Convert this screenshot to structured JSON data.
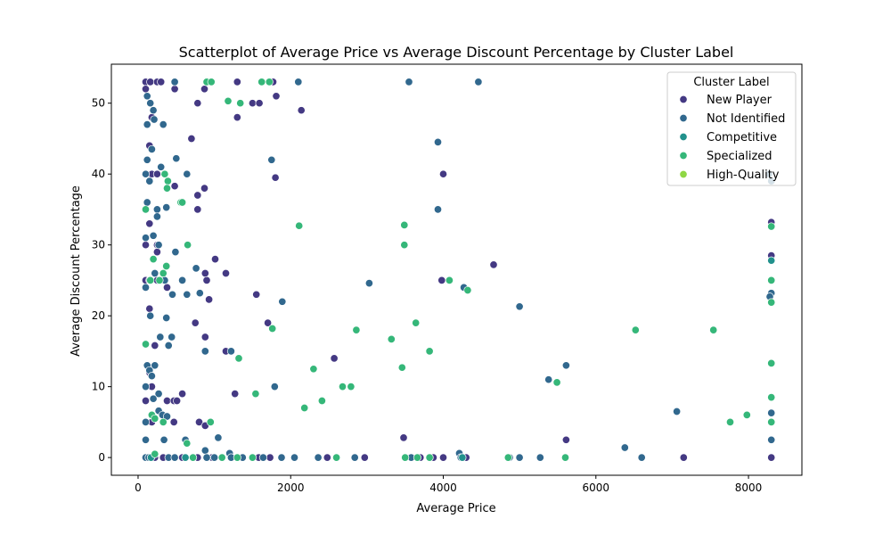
{
  "chart_data": {
    "type": "scatter",
    "title": "Scatterplot of Average Price vs Average Discount Percentage by Cluster Label",
    "xlabel": "Average Price",
    "ylabel": "Average Discount Percentage",
    "xlim": [
      -350,
      8700
    ],
    "ylim": [
      -2.5,
      55.5
    ],
    "xticks": [
      0,
      2000,
      4000,
      6000,
      8000
    ],
    "yticks": [
      0,
      10,
      20,
      30,
      40,
      50
    ],
    "grid": false,
    "legend": {
      "title": "Cluster Label",
      "placement": "top-right",
      "entries": [
        "New Player",
        "Not Identified",
        "Competitive",
        "Specialized",
        "High-Quality"
      ]
    },
    "series": [
      {
        "name": "New Player",
        "color": "#443983",
        "points": [
          [
            100,
            53
          ],
          [
            160,
            53
          ],
          [
            250,
            53
          ],
          [
            300,
            53
          ],
          [
            480,
            52
          ],
          [
            870,
            52
          ],
          [
            1300,
            53
          ],
          [
            1770,
            53
          ],
          [
            100,
            52
          ],
          [
            780,
            50
          ],
          [
            1500,
            50
          ],
          [
            1590,
            50
          ],
          [
            1810,
            51
          ],
          [
            2140,
            49
          ],
          [
            1300,
            48
          ],
          [
            180,
            48
          ],
          [
            700,
            45
          ],
          [
            150,
            44
          ],
          [
            4000,
            40
          ],
          [
            180,
            40
          ],
          [
            250,
            40
          ],
          [
            1800,
            39.5
          ],
          [
            480,
            38.3
          ],
          [
            870,
            38
          ],
          [
            780,
            37
          ],
          [
            780,
            35
          ],
          [
            150,
            33
          ],
          [
            250,
            30
          ],
          [
            100,
            30
          ],
          [
            250,
            29
          ],
          [
            1010,
            28
          ],
          [
            4660,
            27.2
          ],
          [
            100,
            25
          ],
          [
            250,
            25
          ],
          [
            900,
            25
          ],
          [
            1150,
            26
          ],
          [
            880,
            26
          ],
          [
            3980,
            25
          ],
          [
            380,
            24
          ],
          [
            1550,
            23
          ],
          [
            150,
            21
          ],
          [
            930,
            22.3
          ],
          [
            1700,
            19
          ],
          [
            750,
            19
          ],
          [
            880,
            17
          ],
          [
            2570,
            14
          ],
          [
            1150,
            15
          ],
          [
            220,
            15.8
          ],
          [
            150,
            12
          ],
          [
            180,
            10
          ],
          [
            1270,
            9
          ],
          [
            580,
            9
          ],
          [
            100,
            8
          ],
          [
            380,
            8
          ],
          [
            470,
            8
          ],
          [
            510,
            8
          ],
          [
            800,
            5
          ],
          [
            180,
            5
          ],
          [
            470,
            5
          ],
          [
            880,
            4.5
          ],
          [
            3480,
            2.8
          ],
          [
            5610,
            2.5
          ],
          [
            220,
            0
          ],
          [
            330,
            0
          ],
          [
            580,
            0
          ],
          [
            780,
            0
          ],
          [
            970,
            0
          ],
          [
            1580,
            0
          ],
          [
            1730,
            0
          ],
          [
            2480,
            0
          ],
          [
            2970,
            0
          ],
          [
            3700,
            0
          ],
          [
            3870,
            0
          ],
          [
            4000,
            0
          ],
          [
            4300,
            0
          ],
          [
            7150,
            0
          ],
          [
            8300,
            33.2
          ],
          [
            8300,
            28.5
          ],
          [
            8300,
            0
          ]
        ]
      },
      {
        "name": "Not Identified",
        "color": "#31688e",
        "points": [
          [
            480,
            53
          ],
          [
            2100,
            53
          ],
          [
            3550,
            53
          ],
          [
            4460,
            53
          ],
          [
            120,
            51
          ],
          [
            160,
            50
          ],
          [
            200,
            49
          ],
          [
            210,
            47.7
          ],
          [
            120,
            47
          ],
          [
            330,
            47
          ],
          [
            3930,
            44.5
          ],
          [
            180,
            43.5
          ],
          [
            120,
            42
          ],
          [
            500,
            42.2
          ],
          [
            1750,
            42
          ],
          [
            300,
            41
          ],
          [
            100,
            40
          ],
          [
            640,
            40
          ],
          [
            150,
            39
          ],
          [
            120,
            36
          ],
          [
            250,
            35
          ],
          [
            370,
            35.3
          ],
          [
            3930,
            35
          ],
          [
            250,
            34
          ],
          [
            200,
            31.3
          ],
          [
            100,
            31
          ],
          [
            8300,
            39
          ],
          [
            8270,
            40
          ],
          [
            270,
            30
          ],
          [
            150,
            25
          ],
          [
            220,
            26
          ],
          [
            350,
            25
          ],
          [
            100,
            24
          ],
          [
            450,
            23
          ],
          [
            3030,
            24.6
          ],
          [
            4270,
            24
          ],
          [
            5000,
            21.3
          ],
          [
            8300,
            23.2
          ],
          [
            8280,
            22.7
          ],
          [
            490,
            29
          ],
          [
            580,
            25
          ],
          [
            760,
            26.7
          ],
          [
            810,
            23.2
          ],
          [
            640,
            23
          ],
          [
            1890,
            22
          ],
          [
            160,
            20
          ],
          [
            370,
            19.7
          ],
          [
            440,
            17
          ],
          [
            290,
            17
          ],
          [
            400,
            15.8
          ],
          [
            880,
            15
          ],
          [
            1220,
            15
          ],
          [
            5610,
            13
          ],
          [
            5380,
            11
          ],
          [
            1790,
            10
          ],
          [
            120,
            13
          ],
          [
            220,
            13
          ],
          [
            150,
            12.3
          ],
          [
            180,
            11.5
          ],
          [
            100,
            10
          ],
          [
            270,
            9
          ],
          [
            200,
            8.3
          ],
          [
            270,
            6.6
          ],
          [
            180,
            6
          ],
          [
            320,
            6
          ],
          [
            380,
            5.8
          ],
          [
            100,
            5
          ],
          [
            100,
            2.5
          ],
          [
            340,
            2.5
          ],
          [
            620,
            2.5
          ],
          [
            880,
            1
          ],
          [
            1050,
            2.8
          ],
          [
            1200,
            0.6
          ],
          [
            4210,
            0.6
          ],
          [
            6380,
            1.4
          ],
          [
            7060,
            6.5
          ],
          [
            8300,
            6.3
          ],
          [
            8300,
            2.5
          ],
          [
            100,
            0
          ],
          [
            140,
            0
          ],
          [
            400,
            0
          ],
          [
            480,
            0
          ],
          [
            900,
            0
          ],
          [
            1000,
            0
          ],
          [
            1220,
            0
          ],
          [
            1370,
            0
          ],
          [
            1640,
            0
          ],
          [
            1880,
            0
          ],
          [
            2050,
            0
          ],
          [
            2360,
            0
          ],
          [
            2840,
            0
          ],
          [
            3580,
            0
          ],
          [
            4230,
            0
          ],
          [
            4870,
            0
          ],
          [
            5000,
            0
          ],
          [
            5270,
            0
          ],
          [
            6600,
            0
          ]
        ]
      },
      {
        "name": "Competitive",
        "color": "#21918c",
        "points": [
          [
            8300,
            27.8
          ],
          [
            4250,
            0
          ],
          [
            170,
            0
          ],
          [
            620,
            0
          ]
        ]
      },
      {
        "name": "Specialized",
        "color": "#35b779",
        "points": [
          [
            900,
            53
          ],
          [
            960,
            53
          ],
          [
            1620,
            53
          ],
          [
            1720,
            53
          ],
          [
            1180,
            50.3
          ],
          [
            1340,
            50
          ],
          [
            350,
            40
          ],
          [
            390,
            39
          ],
          [
            380,
            38
          ],
          [
            560,
            36
          ],
          [
            580,
            36
          ],
          [
            100,
            35
          ],
          [
            2110,
            32.7
          ],
          [
            3490,
            32.8
          ],
          [
            650,
            30
          ],
          [
            3490,
            30
          ],
          [
            8300,
            32.6
          ],
          [
            200,
            28
          ],
          [
            370,
            27
          ],
          [
            280,
            25
          ],
          [
            160,
            25
          ],
          [
            330,
            26
          ],
          [
            4080,
            25
          ],
          [
            4320,
            23.6
          ],
          [
            8300,
            25
          ],
          [
            8300,
            21.9
          ],
          [
            3640,
            19
          ],
          [
            1760,
            18.2
          ],
          [
            2860,
            18
          ],
          [
            6520,
            18
          ],
          [
            7540,
            18
          ],
          [
            3320,
            16.7
          ],
          [
            100,
            16
          ],
          [
            3820,
            15
          ],
          [
            1320,
            14
          ],
          [
            2300,
            12.5
          ],
          [
            3460,
            12.7
          ],
          [
            8300,
            13.3
          ],
          [
            5490,
            10.6
          ],
          [
            2680,
            10
          ],
          [
            2790,
            10
          ],
          [
            2180,
            7
          ],
          [
            2410,
            8
          ],
          [
            1540,
            9
          ],
          [
            8300,
            8.5
          ],
          [
            180,
            6
          ],
          [
            220,
            5.5
          ],
          [
            330,
            5
          ],
          [
            950,
            5
          ],
          [
            7760,
            5
          ],
          [
            7980,
            6
          ],
          [
            8300,
            5
          ],
          [
            640,
            2
          ],
          [
            220,
            0.5
          ],
          [
            720,
            0
          ],
          [
            1100,
            0
          ],
          [
            1300,
            0
          ],
          [
            1500,
            0
          ],
          [
            2600,
            0
          ],
          [
            3500,
            0
          ],
          [
            3660,
            0
          ],
          [
            3820,
            0
          ],
          [
            4850,
            0
          ],
          [
            5600,
            0
          ]
        ]
      },
      {
        "name": "High-Quality",
        "color": "#8fd744",
        "points": []
      }
    ]
  }
}
